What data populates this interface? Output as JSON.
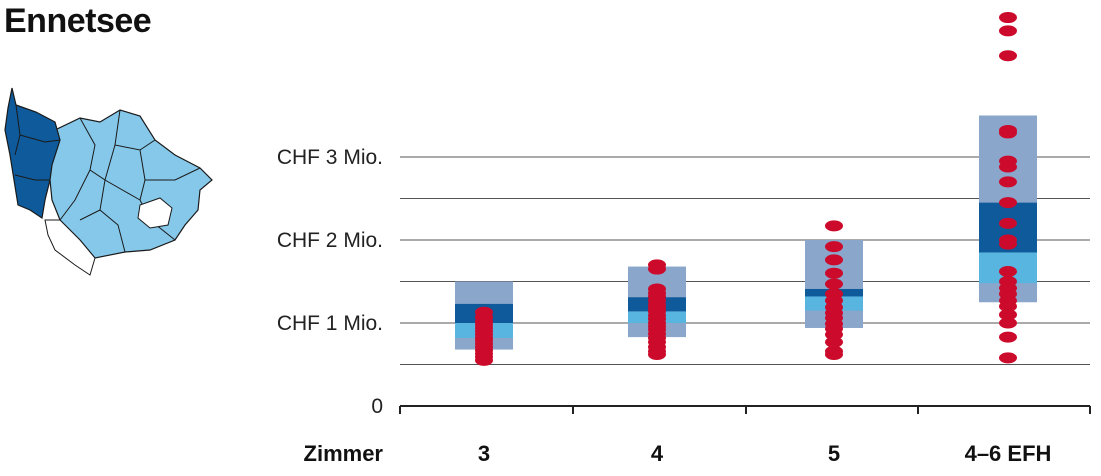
{
  "title": "Ennetsee",
  "colors": {
    "range_outer": "#8aa6cb",
    "range_mid_light": "#58b5e0",
    "range_core": "#0f5a9a",
    "points": "#cc0a2b",
    "map_selected": "#0f5a9a",
    "map_region": "#86c8ea",
    "gridline": "#555555"
  },
  "chart_data": {
    "type": "scatter",
    "x_axis_title": "Zimmer",
    "categories": [
      "3",
      "4",
      "5",
      "4–6 EFH"
    ],
    "ylim": [
      0,
      4.75
    ],
    "y_ticks": [
      {
        "value": 0,
        "label": "0"
      },
      {
        "value": 1,
        "label": "CHF 1 Mio."
      },
      {
        "value": 2,
        "label": "CHF 2 Mio."
      },
      {
        "value": 3,
        "label": "CHF 3 Mio."
      }
    ],
    "gridlines": [
      0.5,
      1,
      1.5,
      2,
      2.5,
      3
    ],
    "ranges": [
      {
        "category": "3",
        "outer": [
          0.68,
          1.5
        ],
        "mid": [
          0.82,
          1.25
        ],
        "core": [
          1.0,
          1.23
        ],
        "light": [
          0.82,
          1.0
        ]
      },
      {
        "category": "4",
        "outer": [
          0.83,
          1.68
        ],
        "mid": [
          1.0,
          1.32
        ],
        "core": [
          1.14,
          1.31
        ],
        "light": [
          1.0,
          1.14
        ]
      },
      {
        "category": "5",
        "outer": [
          0.94,
          2.0
        ],
        "mid": [
          1.15,
          1.42
        ],
        "core": [
          1.32,
          1.41
        ],
        "light": [
          1.15,
          1.32
        ]
      },
      {
        "category": "4–6 EFH",
        "outer": [
          1.25,
          3.5
        ],
        "mid": [
          1.48,
          2.45
        ],
        "core": [
          1.85,
          2.45
        ],
        "light": [
          1.48,
          1.85
        ]
      }
    ],
    "points": [
      {
        "category": "3",
        "values": [
          1.13,
          1.07,
          1.02,
          0.98,
          0.94,
          0.9,
          0.86,
          0.82,
          0.79,
          0.75,
          0.71,
          0.67,
          0.63,
          0.59,
          0.55
        ]
      },
      {
        "category": "4",
        "values": [
          1.7,
          1.65,
          1.41,
          1.36,
          1.32,
          1.27,
          1.22,
          1.18,
          1.14,
          1.09,
          1.05,
          1.0,
          0.96,
          0.92,
          0.87,
          0.82,
          0.77,
          0.71,
          0.66,
          0.62
        ]
      },
      {
        "category": "5",
        "values": [
          2.17,
          1.92,
          1.76,
          1.6,
          1.47,
          1.35,
          1.27,
          1.19,
          1.12,
          1.06,
          0.99,
          0.93,
          0.86,
          0.77,
          0.66,
          0.62
        ]
      },
      {
        "category": "4–6 EFH",
        "values": [
          4.68,
          4.52,
          4.22,
          3.32,
          3.29,
          2.95,
          2.88,
          2.7,
          2.45,
          2.2,
          2.0,
          1.95,
          1.62,
          1.5,
          1.42,
          1.35,
          1.27,
          1.2,
          1.1,
          1.0,
          0.83,
          0.58
        ]
      }
    ]
  }
}
